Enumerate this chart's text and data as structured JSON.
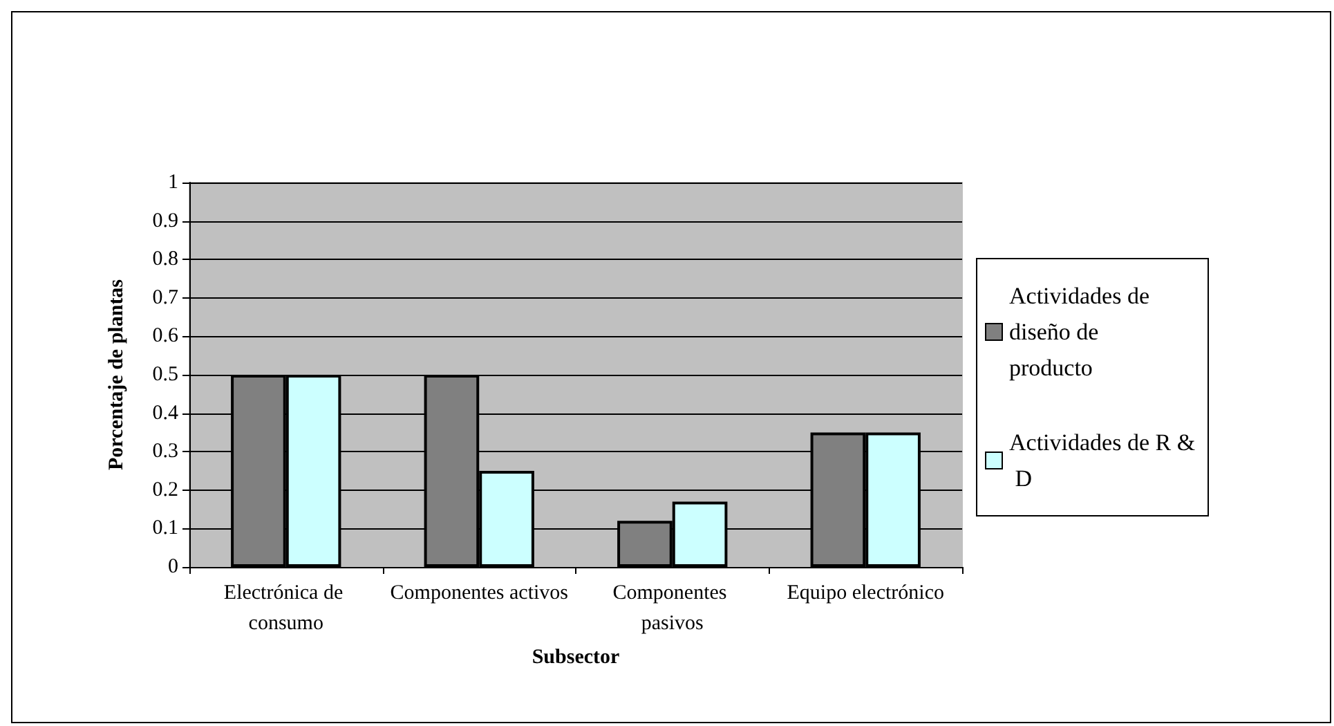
{
  "chart_data": {
    "type": "bar",
    "xlabel": "Subsector",
    "ylabel": "Porcentaje de plantas",
    "categories": [
      "Electrónica de consumo",
      "Componentes activos",
      "Componentes pasivos",
      "Equipo electrónico"
    ],
    "series": [
      {
        "name": "Actividades de diseño de producto",
        "color": "#808080",
        "values": [
          0.5,
          0.5,
          0.12,
          0.35
        ]
      },
      {
        "name": "Actividades de R & D",
        "color": "#ccffff",
        "values": [
          0.5,
          0.25,
          0.17,
          0.35
        ]
      }
    ],
    "ylim": [
      0,
      1
    ],
    "yticks": [
      0,
      0.1,
      0.2,
      0.3,
      0.4,
      0.5,
      0.6,
      0.7,
      0.8,
      0.9,
      1
    ],
    "grid": "y",
    "legend": "right"
  }
}
